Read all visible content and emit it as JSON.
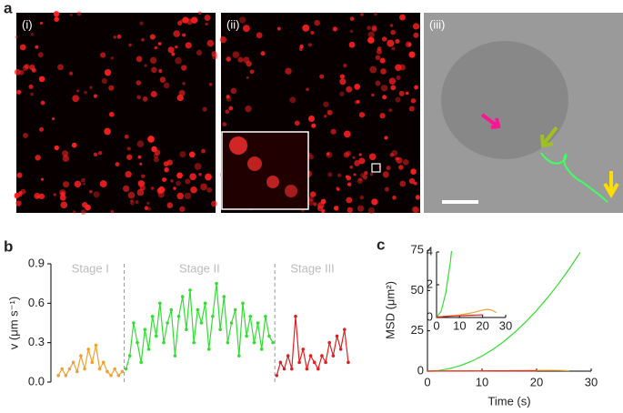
{
  "panel_labels": [
    "a",
    "b",
    "c"
  ],
  "image_labels": [
    "(i)",
    "(ii)",
    "(iii)"
  ],
  "chart_data": [
    {
      "type": "line",
      "ylabel": "v (μm s⁻¹)",
      "categories": [
        null,
        null,
        null,
        null,
        null,
        null,
        null,
        null,
        null,
        null,
        null,
        null,
        null,
        null,
        null,
        null,
        null,
        null,
        null,
        null,
        null,
        null,
        null,
        null,
        null,
        null,
        null,
        null,
        null,
        null,
        null,
        null,
        null,
        null,
        null,
        null,
        null,
        null,
        null,
        null,
        null,
        null,
        null,
        null,
        null,
        null,
        null,
        null,
        null,
        null,
        null,
        null,
        null,
        null,
        null,
        null,
        null,
        null,
        null,
        null,
        null,
        null,
        null,
        null,
        null,
        null,
        null,
        null,
        null,
        null,
        null,
        null,
        null,
        null,
        null,
        null,
        null,
        null
      ],
      "ylim": [
        0,
        0.9
      ],
      "yticks": [
        {
          "value": 0,
          "label": "0.0"
        },
        0.3,
        0.6,
        0.9
      ],
      "series": [
        {
          "name": "Stage I",
          "color": "#f0a030",
          "values": [
            0.05,
            0.1,
            0.05,
            0.1,
            0.15,
            0.08,
            0.2,
            0.1,
            0.25,
            0.15,
            0.28,
            0.1,
            0.15,
            0.08,
            0.05,
            0.1,
            0.05,
            0.08,
            null,
            null,
            null,
            null,
            null,
            null,
            null,
            null,
            null,
            null,
            null,
            null,
            null,
            null,
            null,
            null,
            null,
            null,
            null,
            null,
            null,
            null,
            null,
            null,
            null,
            null,
            null,
            null,
            null,
            null,
            null,
            null,
            null,
            null,
            null,
            null,
            null,
            null,
            null,
            null,
            null,
            null,
            null,
            null,
            null,
            null,
            null,
            null,
            null,
            null,
            null,
            null,
            null,
            null,
            null,
            null,
            null,
            null,
            null,
            null
          ]
        },
        {
          "name": "Stage II",
          "color": "#33dd33",
          "values": [
            null,
            null,
            null,
            null,
            null,
            null,
            null,
            null,
            null,
            null,
            null,
            null,
            null,
            null,
            null,
            null,
            null,
            null,
            0.1,
            0.2,
            0.45,
            0.3,
            0.15,
            0.4,
            0.25,
            0.5,
            0.35,
            0.6,
            0.3,
            0.45,
            0.55,
            0.2,
            0.5,
            0.65,
            0.4,
            0.7,
            0.3,
            0.55,
            0.45,
            0.6,
            0.25,
            0.5,
            0.75,
            0.4,
            0.65,
            0.3,
            0.45,
            0.55,
            0.2,
            0.6,
            0.35,
            0.5,
            0.3,
            0.45,
            0.25,
            0.5,
            0.35,
            0.3,
            null,
            null,
            null,
            null,
            null,
            null,
            null,
            null,
            null,
            null,
            null,
            null,
            null,
            null,
            null,
            null,
            null,
            null,
            null,
            null
          ]
        },
        {
          "name": "Stage III",
          "color": "#e02020",
          "values": [
            null,
            null,
            null,
            null,
            null,
            null,
            null,
            null,
            null,
            null,
            null,
            null,
            null,
            null,
            null,
            null,
            null,
            null,
            null,
            null,
            null,
            null,
            null,
            null,
            null,
            null,
            null,
            null,
            null,
            null,
            null,
            null,
            null,
            null,
            null,
            null,
            null,
            null,
            null,
            null,
            null,
            null,
            null,
            null,
            null,
            null,
            null,
            null,
            null,
            null,
            null,
            null,
            null,
            null,
            null,
            null,
            null,
            null,
            0.05,
            0.15,
            0.1,
            0.2,
            0.1,
            0.5,
            0.15,
            0.25,
            0.1,
            0.2,
            0.15,
            0.1,
            0.2,
            0.15,
            0.3,
            0.2,
            0.35,
            0.25,
            0.4,
            0.15
          ]
        }
      ]
    },
    {
      "type": "xy-line",
      "xlabel": "Time (s)",
      "ylabel": "MSD (μm²)",
      "xlim": [
        0,
        30
      ],
      "xticks": [
        0,
        10,
        20,
        30
      ],
      "ylim": [
        0,
        75
      ],
      "yticks": [
        0,
        25,
        50,
        75
      ],
      "inset": {
        "xlim": [
          0,
          30
        ],
        "xticks": [
          0,
          10,
          20,
          30
        ],
        "ylim": [
          0,
          4
        ],
        "yticks": [
          0,
          2,
          4
        ]
      },
      "series": [
        {
          "color": "#33dd33",
          "x": [
            0,
            2,
            4,
            6,
            8,
            10,
            12,
            14,
            16,
            18,
            20,
            22,
            24,
            26,
            28
          ],
          "values": [
            0,
            0.38,
            1.5,
            3.4,
            6.0,
            9.4,
            13.5,
            18.4,
            24.1,
            30.5,
            37.6,
            45.5,
            54.1,
            63.5,
            73.7
          ]
        },
        {
          "color": "#f0a030",
          "x": [
            0,
            2,
            4,
            6,
            8,
            10,
            12,
            14,
            16,
            18,
            20,
            22,
            24,
            26
          ],
          "values": [
            0.02,
            0.05,
            0.08,
            0.1,
            0.12,
            0.15,
            0.2,
            0.25,
            0.3,
            0.38,
            0.45,
            0.5,
            0.45,
            0.3
          ]
        },
        {
          "color": "#e02020",
          "x": [
            0,
            2,
            4,
            6,
            8,
            10,
            12,
            14,
            16,
            18,
            20
          ],
          "values": [
            0.02,
            0.04,
            0.06,
            0.08,
            0.1,
            0.1,
            0.12,
            0.13,
            0.14,
            0.15,
            0.16
          ]
        }
      ]
    }
  ]
}
